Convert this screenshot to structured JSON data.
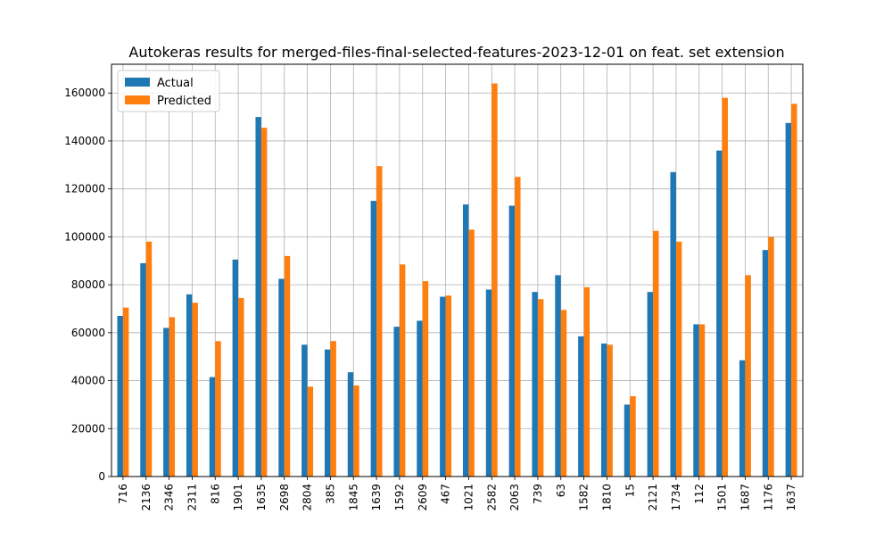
{
  "chart_data": {
    "type": "bar",
    "title": "Autokeras results for merged-files-final-selected-features-2023-12-01 on feat. set extension",
    "xlabel": "",
    "ylabel": "",
    "ylim": [
      0,
      172000
    ],
    "yticks": [
      0,
      20000,
      40000,
      60000,
      80000,
      100000,
      120000,
      140000,
      160000
    ],
    "grid": true,
    "legend_position": "top-left",
    "categories": [
      "716",
      "2136",
      "2346",
      "2311",
      "816",
      "1901",
      "1635",
      "2698",
      "2804",
      "385",
      "1845",
      "1639",
      "1592",
      "2609",
      "467",
      "1021",
      "2582",
      "2063",
      "739",
      "63",
      "1582",
      "1810",
      "15",
      "2121",
      "1734",
      "112",
      "1501",
      "1687",
      "1176",
      "1637"
    ],
    "series": [
      {
        "name": "Actual",
        "color": "#1f77b4",
        "values": [
          67000,
          89000,
          62000,
          76000,
          41500,
          90500,
          150000,
          82500,
          55000,
          53000,
          43500,
          115000,
          62500,
          65000,
          75000,
          113500,
          78000,
          113000,
          77000,
          84000,
          58500,
          55500,
          30000,
          77000,
          127000,
          63500,
          136000,
          48500,
          94500,
          147500
        ]
      },
      {
        "name": "Predicted",
        "color": "#ff7f0e",
        "values": [
          70500,
          98000,
          66500,
          72500,
          56500,
          74500,
          145500,
          92000,
          37500,
          56500,
          38000,
          129500,
          88500,
          81500,
          75500,
          103000,
          164000,
          125000,
          74000,
          69500,
          79000,
          55000,
          33500,
          102500,
          98000,
          63500,
          158000,
          84000,
          100000,
          155500
        ]
      }
    ]
  }
}
